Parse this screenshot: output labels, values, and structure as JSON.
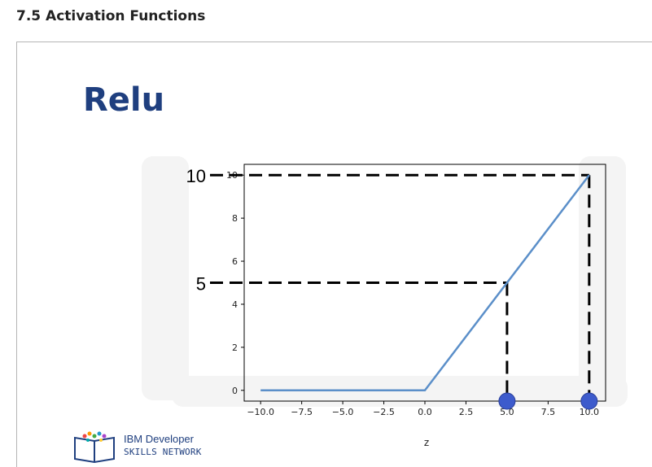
{
  "page": {
    "title": "7.5 Activation Functions"
  },
  "slide": {
    "title": "Relu",
    "callouts": [
      {
        "label": "10",
        "y": 10,
        "x": 10
      },
      {
        "label": "5",
        "y": 5,
        "x": 5
      }
    ],
    "logo": {
      "line1": "IBM Developer",
      "line2": "SKILLS NETWORK"
    }
  },
  "chart_data": {
    "type": "line",
    "title": "",
    "xlabel": "z",
    "ylabel": "",
    "xlim": [
      -11,
      11
    ],
    "ylim": [
      -0.5,
      10.5
    ],
    "xticks": [
      -10.0,
      -7.5,
      -5.0,
      -2.5,
      0.0,
      2.5,
      5.0,
      7.5,
      10.0
    ],
    "xtick_labels": [
      "−10.0",
      "−7.5",
      "−5.0",
      "−2.5",
      "0.0",
      "2.5",
      "5.0",
      "7.5",
      "10.0"
    ],
    "yticks": [
      0,
      2,
      4,
      6,
      8,
      10
    ],
    "ytick_labels": [
      "0",
      "2",
      "4",
      "6",
      "8",
      "10"
    ],
    "series": [
      {
        "x": [
          -10,
          0,
          10
        ],
        "y": [
          0,
          0,
          10
        ]
      }
    ],
    "markers": [
      {
        "x": 5,
        "y": -0.5
      },
      {
        "x": 10,
        "y": -0.5
      }
    ],
    "grid": false,
    "colors": {
      "line": "#5b8fc9",
      "marker": "#3d5bcc",
      "dash": "#000000"
    }
  }
}
